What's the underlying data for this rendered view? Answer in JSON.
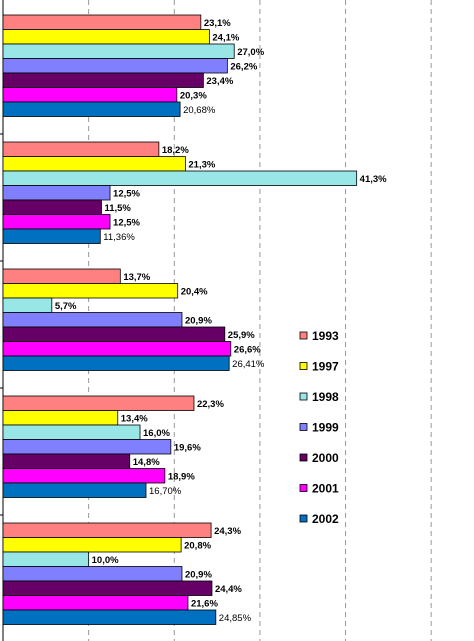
{
  "chart_data": {
    "type": "bar",
    "orientation": "horizontal",
    "xlim": [
      0,
      55
    ],
    "grid": true,
    "legend_position": "right",
    "groups": [
      {
        "values": [
          23.1,
          24.1,
          27.0,
          26.2,
          23.4,
          20.3,
          20.68
        ],
        "labels": [
          "23,1%",
          "24,1%",
          "27,0%",
          "26,2%",
          "23,4%",
          "20,3%",
          "20,68%"
        ]
      },
      {
        "values": [
          18.2,
          21.3,
          41.3,
          12.5,
          11.5,
          12.5,
          11.36
        ],
        "labels": [
          "18,2%",
          "21,3%",
          "41,3%",
          "12,5%",
          "11,5%",
          "12,5%",
          "11,36%"
        ]
      },
      {
        "values": [
          13.7,
          20.4,
          5.7,
          20.9,
          25.9,
          26.6,
          26.41
        ],
        "labels": [
          "13,7%",
          "20,4%",
          "5,7%",
          "20,9%",
          "25,9%",
          "26,6%",
          "26,41%"
        ]
      },
      {
        "values": [
          22.3,
          13.4,
          16.0,
          19.6,
          14.8,
          18.9,
          16.7
        ],
        "labels": [
          "22,3%",
          "13,4%",
          "16,0%",
          "19,6%",
          "14,8%",
          "18,9%",
          "16,70%"
        ]
      },
      {
        "values": [
          24.3,
          20.8,
          10.0,
          20.9,
          24.4,
          21.6,
          24.85
        ],
        "labels": [
          "24,3%",
          "20,8%",
          "10,0%",
          "20,9%",
          "24,4%",
          "21,6%",
          "24,85%"
        ]
      }
    ],
    "series": [
      {
        "name": "1993",
        "color": "#ff8080"
      },
      {
        "name": "1997",
        "color": "#ffff00"
      },
      {
        "name": "1998",
        "color": "#99e6e6"
      },
      {
        "name": "1999",
        "color": "#8080ff"
      },
      {
        "name": "2000",
        "color": "#660066"
      },
      {
        "name": "2001",
        "color": "#ff00ff"
      },
      {
        "name": "2002",
        "color": "#0070c0"
      }
    ]
  }
}
